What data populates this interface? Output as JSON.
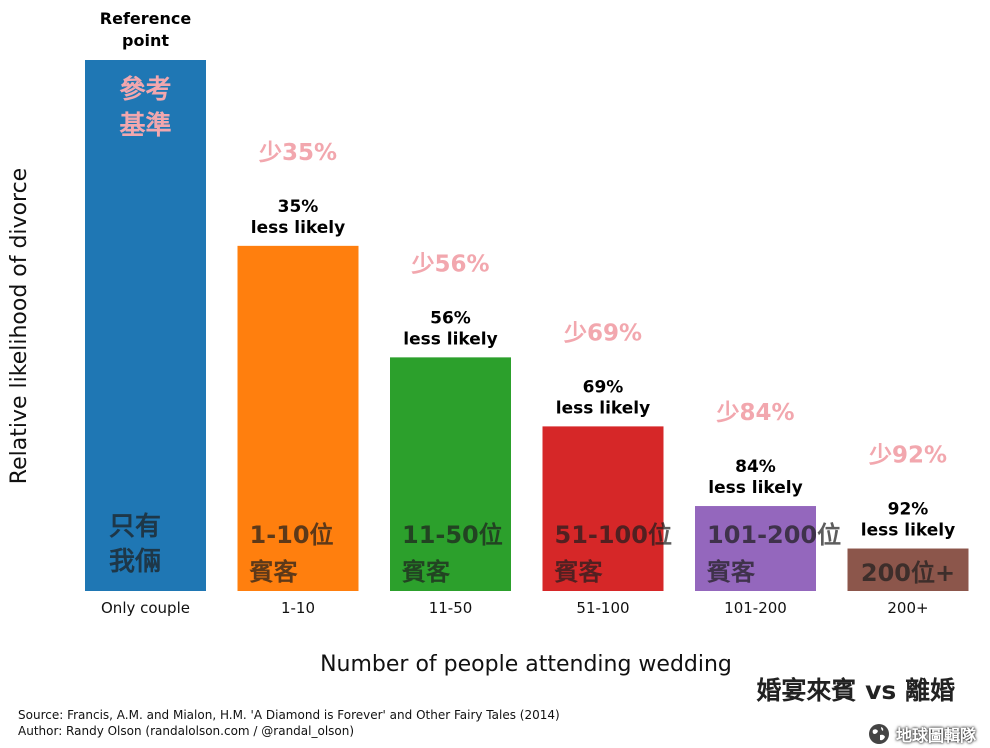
{
  "chart_data": {
    "type": "bar",
    "categories": [
      "Only couple",
      "1-10",
      "11-50",
      "51-100",
      "101-200",
      "200+"
    ],
    "values": [
      100,
      65,
      44,
      31,
      16,
      8
    ],
    "colors": [
      "#1f77b4",
      "#ff7f0e",
      "#2ca02c",
      "#d62728",
      "#9467bd",
      "#8c564b"
    ],
    "ylabel": "Relative likelihood of divorce",
    "xlabel": "Number of people attending wedding",
    "reference_label": "Reference point",
    "bar_annotations": [
      "",
      "35% less likely",
      "56% less likely",
      "69% less likely",
      "84% less likely",
      "92% less likely"
    ],
    "chinese_percent_labels": [
      "參考基準",
      "少35%",
      "少56%",
      "少69%",
      "少84%",
      "少92%"
    ],
    "chinese_category_labels": [
      "只有我倆",
      "1-10位賓客",
      "11-50位賓客",
      "51-100位賓客",
      "101-200位賓客",
      "200位+"
    ],
    "chinese_title": "婚宴來賓 vs 離婚",
    "ylim": [
      0,
      100
    ],
    "grid": false
  },
  "source_line": "Source: Francis, A.M. and Mialon, H.M. 'A Diamond is Forever' and Other Fairy Tales (2014)",
  "author_line": "Author: Randy Olson (randalolson.com / @randal_olson)",
  "watermark": {
    "icon": "globe-icon",
    "text": "地球圖輯隊"
  }
}
